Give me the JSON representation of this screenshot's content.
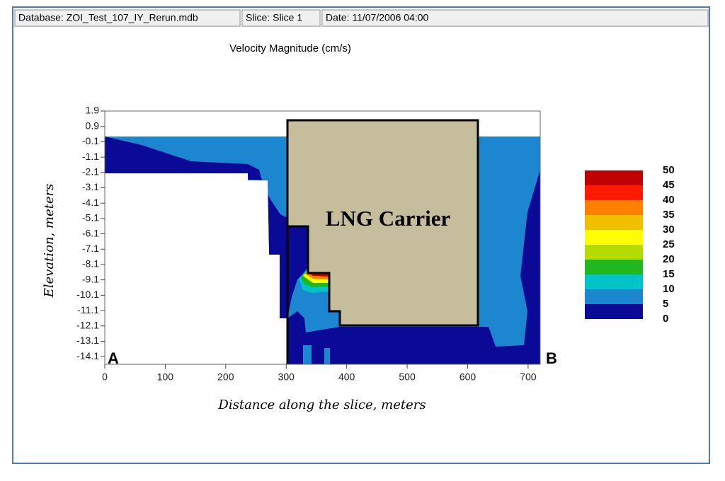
{
  "header": {
    "database": "Database: ZOI_Test_107_IY_Rerun.mdb",
    "slice": "Slice: Slice 1",
    "date": "Date: 11/07/2006 04:00"
  },
  "chart_data": {
    "type": "contour",
    "title": "Velocity Magnitude (cm/s)",
    "x_label": "Distance along the slice, meters",
    "y_label": "Elevation, meters",
    "xlim": [
      0,
      720
    ],
    "xticks": [
      0,
      100,
      200,
      300,
      400,
      500,
      600,
      700
    ],
    "ylim": [
      -14.6,
      1.9
    ],
    "yticks": [
      1.9,
      0.9,
      -0.1,
      -1.1,
      -2.1,
      -3.1,
      -4.1,
      -5.1,
      -6.1,
      -7.1,
      -8.1,
      -9.1,
      -10.1,
      -11.1,
      -12.1,
      -13.1,
      -14.1
    ],
    "annotations": {
      "start": "A",
      "end": "B",
      "vessel": "LNG Carrier"
    },
    "colorbar": {
      "levels": [
        0,
        5,
        10,
        15,
        20,
        25,
        30,
        35,
        40,
        45,
        50
      ],
      "colors": [
        "#0a0a96",
        "#1c86d0",
        "#00c4c8",
        "#1fb81f",
        "#b4dc00",
        "#ffff00",
        "#f0c000",
        "#ff8000",
        "#ff1a00",
        "#c00000"
      ]
    }
  }
}
